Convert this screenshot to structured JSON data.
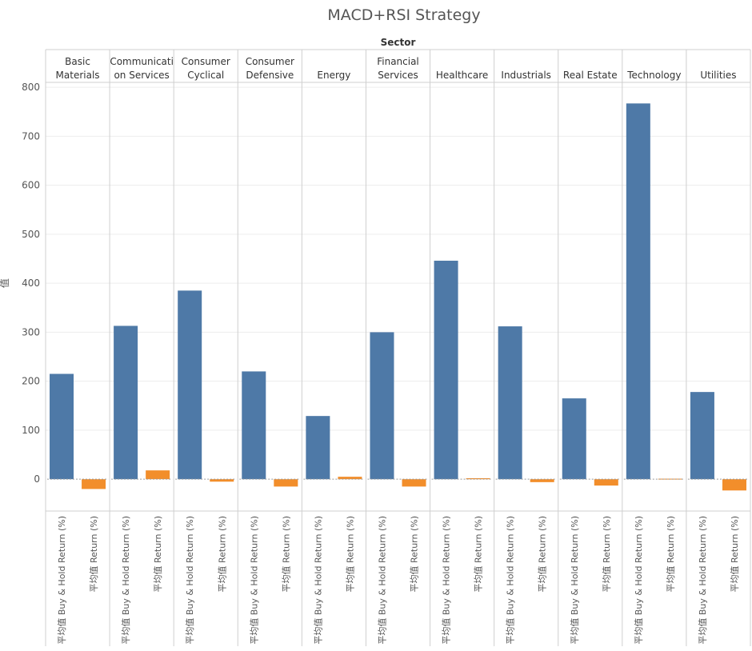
{
  "chart_data": {
    "type": "bar",
    "title": "MACD+RSI Strategy",
    "facet_title": "Sector",
    "ylabel": "值",
    "ylim": [
      -65,
      810
    ],
    "yticks": [
      0,
      100,
      200,
      300,
      400,
      500,
      600,
      700,
      800
    ],
    "measures": [
      "平均值 Buy & Hold Return (%)",
      "平均值 Return (%)"
    ],
    "colors": {
      "平均值 Buy & Hold Return (%)": "#4e79a7",
      "平均值 Return (%)": "#f28e2b"
    },
    "sectors": [
      {
        "label": [
          "Basic",
          "Materials"
        ],
        "values": [
          215,
          -20
        ]
      },
      {
        "label": [
          "Communicati",
          "on Services"
        ],
        "values": [
          313,
          18
        ]
      },
      {
        "label": [
          "Consumer",
          "Cyclical"
        ],
        "values": [
          385,
          -5
        ]
      },
      {
        "label": [
          "Consumer",
          "Defensive"
        ],
        "values": [
          220,
          -15
        ]
      },
      {
        "label": [
          "Energy"
        ],
        "values": [
          129,
          5
        ]
      },
      {
        "label": [
          "Financial",
          "Services"
        ],
        "values": [
          300,
          -15
        ]
      },
      {
        "label": [
          "Healthcare"
        ],
        "values": [
          446,
          2
        ]
      },
      {
        "label": [
          "Industrials"
        ],
        "values": [
          312,
          -6
        ]
      },
      {
        "label": [
          "Real Estate"
        ],
        "values": [
          165,
          -13
        ]
      },
      {
        "label": [
          "Technology"
        ],
        "values": [
          767,
          1
        ]
      },
      {
        "label": [
          "Utilities"
        ],
        "values": [
          178,
          -23
        ]
      }
    ]
  }
}
